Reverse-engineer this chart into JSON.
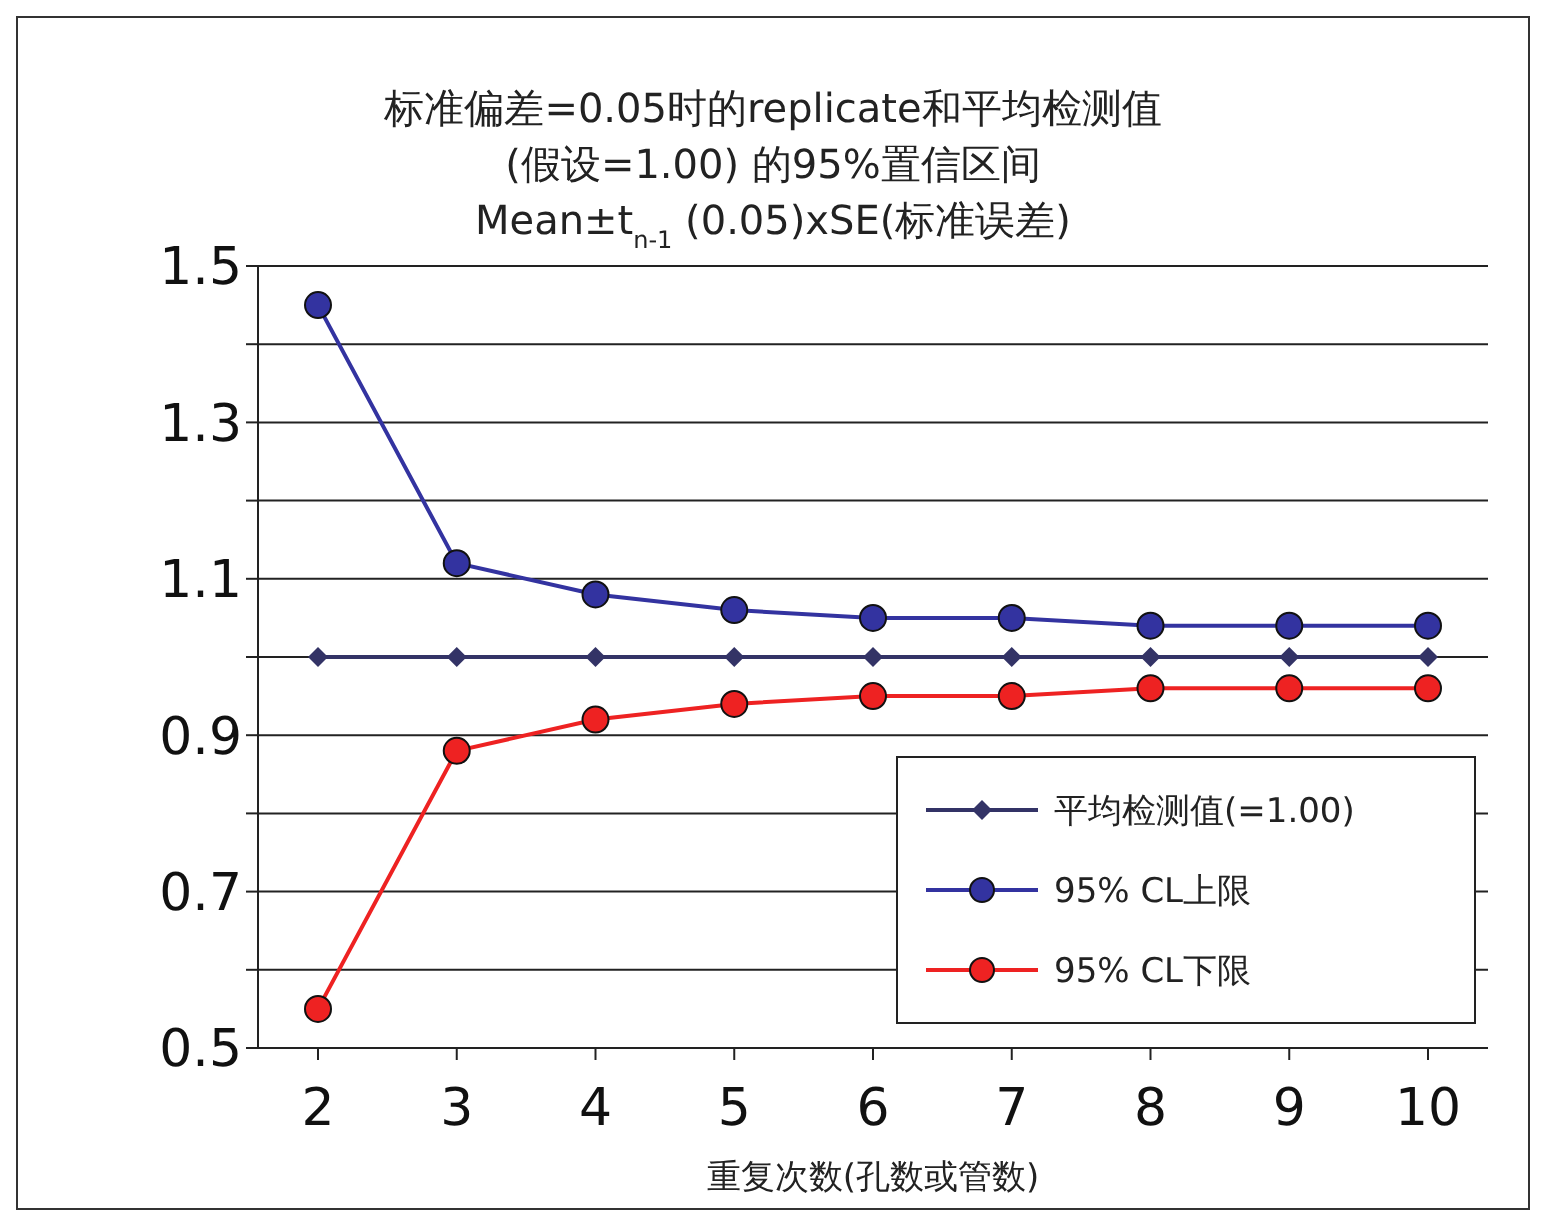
{
  "chart_data": {
    "type": "line",
    "title": "标准偏差=0.05时的replicate和平均检测值\n(假设=1.00) 的95%置信区间\nMean±t$_{n-1}$(0.05)xSE(标准误差)",
    "xlabel": "重复次数(孔数或管数)",
    "categories": [
      "2",
      "3",
      "4",
      "5",
      "6",
      "7",
      "8",
      "9",
      "10"
    ],
    "series": [
      {
        "name": "平均检测值(=1.00)",
        "color": "#333366",
        "marker": "diamond",
        "values": [
          1.0,
          1.0,
          1.0,
          1.0,
          1.0,
          1.0,
          1.0,
          1.0,
          1.0
        ]
      },
      {
        "name": "95% CL上限",
        "color": "#3333a0",
        "marker": "circle",
        "values": [
          1.45,
          1.12,
          1.08,
          1.06,
          1.05,
          1.05,
          1.04,
          1.04,
          1.04
        ]
      },
      {
        "name": "95% CL下限",
        "color": "#ee2222",
        "marker": "circle",
        "values": [
          0.55,
          0.88,
          0.92,
          0.94,
          0.95,
          0.95,
          0.96,
          0.96,
          0.96
        ]
      }
    ],
    "ylim": [
      0.5,
      1.5
    ],
    "yticks": [
      0.5,
      {
        "value": 0.6,
        "label": null
      },
      0.7,
      {
        "value": 0.8,
        "label": null
      },
      0.9,
      {
        "value": 1.0,
        "label": null
      },
      1.1,
      {
        "value": 1.2,
        "label": null
      },
      1.3,
      {
        "value": 1.4,
        "label": null
      },
      1.5
    ],
    "grid": "y",
    "legend": "bottom right"
  }
}
